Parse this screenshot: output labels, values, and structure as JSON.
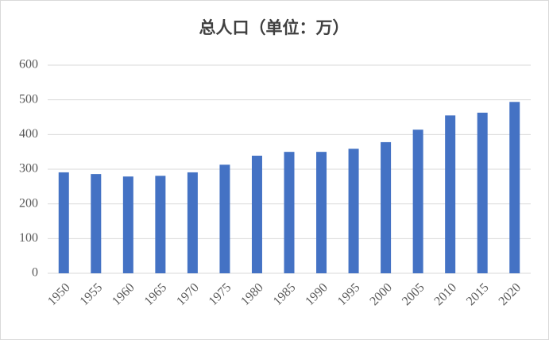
{
  "chart_data": {
    "type": "bar",
    "title": "总人口（单位：万）",
    "categories": [
      "1950",
      "1955",
      "1960",
      "1965",
      "1970",
      "1975",
      "1980",
      "1985",
      "1990",
      "1995",
      "2000",
      "2005",
      "2010",
      "2015",
      "2020"
    ],
    "values": [
      291,
      286,
      279,
      281,
      291,
      313,
      339,
      350,
      350,
      359,
      378,
      414,
      455,
      463,
      494
    ],
    "color": "#4472c4",
    "ylim": [
      0,
      600
    ],
    "yticks": [
      0,
      100,
      200,
      300,
      400,
      500,
      600
    ],
    "grid": true
  }
}
